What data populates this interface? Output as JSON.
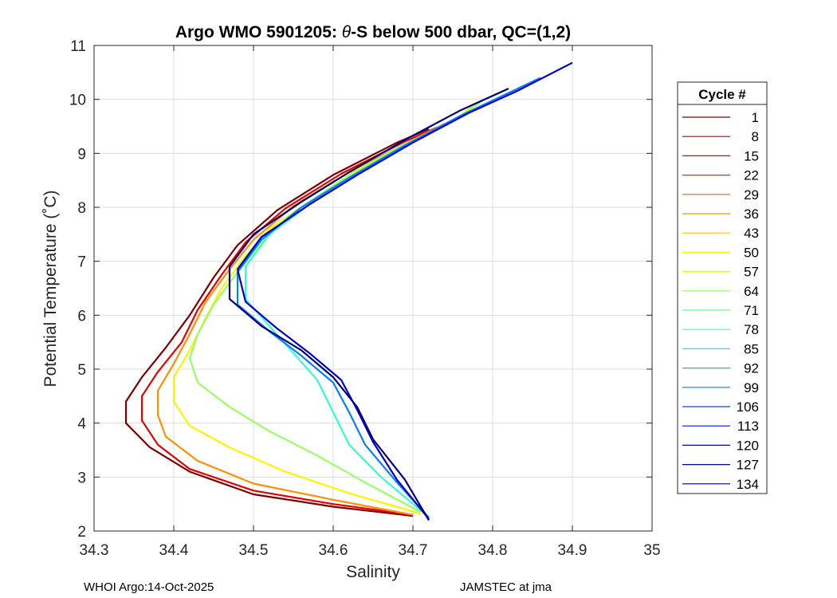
{
  "chart_data": {
    "type": "line",
    "title_prefix": "Argo WMO 5901205: ",
    "title_symbol": "θ",
    "title_suffix": "-S below 500 dbar,  QC=(1,2)",
    "xlabel": "Salinity",
    "ylabel": "Potential Temperature (˚C)",
    "xlim": [
      34.3,
      35
    ],
    "ylim": [
      2,
      11
    ],
    "xticks": [
      "34.3",
      "34.4",
      "34.5",
      "34.6",
      "34.7",
      "34.8",
      "34.9",
      "35"
    ],
    "yticks": [
      "2",
      "3",
      "4",
      "5",
      "6",
      "7",
      "8",
      "9",
      "10",
      "11"
    ],
    "grid": true,
    "legend_title": "Cycle #",
    "legend_position": "right-outside",
    "legend": [
      "1",
      "8",
      "15",
      "22",
      "29",
      "36",
      "43",
      "50",
      "57",
      "64",
      "71",
      "78",
      "85",
      "92",
      "99",
      "106",
      "113",
      "120",
      "127",
      "134"
    ],
    "legend_colors": [
      "#800000",
      "#b20000",
      "#e60000",
      "#ff2000",
      "#ff5a00",
      "#ff9000",
      "#ffc400",
      "#fff400",
      "#ccff33",
      "#99ff66",
      "#66ff99",
      "#33ffcc",
      "#00f0ff",
      "#00b8ff",
      "#0080ff",
      "#0048ff",
      "#0010ff",
      "#0000cc",
      "#000099",
      "#000080"
    ],
    "series_note": "",
    "representative_profiles": [
      {
        "cycle": "1",
        "color": "#800000",
        "points": [
          [
            34.7,
            2.28
          ],
          [
            34.6,
            2.45
          ],
          [
            34.5,
            2.68
          ],
          [
            34.42,
            3.1
          ],
          [
            34.37,
            3.55
          ],
          [
            34.34,
            4.0
          ],
          [
            34.34,
            4.4
          ],
          [
            34.36,
            4.85
          ],
          [
            34.39,
            5.4
          ],
          [
            34.42,
            6.0
          ],
          [
            34.45,
            6.7
          ],
          [
            34.48,
            7.3
          ],
          [
            34.53,
            7.95
          ],
          [
            34.6,
            8.6
          ],
          [
            34.68,
            9.2
          ],
          [
            34.72,
            9.45
          ]
        ]
      },
      {
        "cycle": "15",
        "color": "#e60000",
        "points": [
          [
            34.7,
            2.3
          ],
          [
            34.6,
            2.5
          ],
          [
            34.5,
            2.75
          ],
          [
            34.42,
            3.15
          ],
          [
            34.38,
            3.6
          ],
          [
            34.36,
            4.05
          ],
          [
            34.36,
            4.5
          ],
          [
            34.38,
            4.95
          ],
          [
            34.41,
            5.5
          ],
          [
            34.43,
            6.1
          ],
          [
            34.46,
            6.75
          ],
          [
            34.49,
            7.35
          ],
          [
            34.54,
            7.98
          ],
          [
            34.61,
            8.62
          ],
          [
            34.69,
            9.22
          ],
          [
            34.73,
            9.48
          ]
        ]
      },
      {
        "cycle": "36",
        "color": "#ff9000",
        "points": [
          [
            34.7,
            2.3
          ],
          [
            34.6,
            2.58
          ],
          [
            34.5,
            2.88
          ],
          [
            34.43,
            3.3
          ],
          [
            34.39,
            3.75
          ],
          [
            34.38,
            4.15
          ],
          [
            34.38,
            4.6
          ],
          [
            34.4,
            5.1
          ],
          [
            34.42,
            5.65
          ],
          [
            34.44,
            6.25
          ],
          [
            34.47,
            6.85
          ],
          [
            34.5,
            7.4
          ],
          [
            34.55,
            8.02
          ],
          [
            34.62,
            8.65
          ],
          [
            34.7,
            9.25
          ],
          [
            34.74,
            9.55
          ]
        ]
      },
      {
        "cycle": "50",
        "color": "#fff400",
        "points": [
          [
            34.71,
            2.32
          ],
          [
            34.62,
            2.7
          ],
          [
            34.54,
            3.1
          ],
          [
            34.47,
            3.55
          ],
          [
            34.42,
            3.95
          ],
          [
            34.4,
            4.4
          ],
          [
            34.4,
            4.85
          ],
          [
            34.42,
            5.35
          ],
          [
            34.44,
            5.95
          ],
          [
            34.46,
            6.5
          ],
          [
            34.49,
            7.1
          ],
          [
            34.52,
            7.6
          ],
          [
            34.57,
            8.1
          ],
          [
            34.63,
            8.7
          ],
          [
            34.71,
            9.3
          ],
          [
            34.76,
            9.7
          ],
          [
            34.78,
            9.95
          ]
        ]
      },
      {
        "cycle": "64",
        "color": "#99ff66",
        "points": [
          [
            34.71,
            2.35
          ],
          [
            34.64,
            2.9
          ],
          [
            34.58,
            3.4
          ],
          [
            34.52,
            3.85
          ],
          [
            34.47,
            4.3
          ],
          [
            34.43,
            4.75
          ],
          [
            34.42,
            5.2
          ],
          [
            34.43,
            5.65
          ],
          [
            34.45,
            6.2
          ],
          [
            34.48,
            6.8
          ],
          [
            34.51,
            7.35
          ],
          [
            34.55,
            7.9
          ],
          [
            34.61,
            8.5
          ],
          [
            34.68,
            9.1
          ],
          [
            34.75,
            9.6
          ],
          [
            34.79,
            10.0
          ]
        ]
      },
      {
        "cycle": "78",
        "color": "#33ffcc",
        "points": [
          [
            34.71,
            2.38
          ],
          [
            34.66,
            3.0
          ],
          [
            34.62,
            3.6
          ],
          [
            34.6,
            4.2
          ],
          [
            34.58,
            4.8
          ],
          [
            34.55,
            5.3
          ],
          [
            34.52,
            5.8
          ],
          [
            34.49,
            6.3
          ],
          [
            34.49,
            6.9
          ],
          [
            34.52,
            7.5
          ],
          [
            34.57,
            8.05
          ],
          [
            34.63,
            8.6
          ],
          [
            34.7,
            9.2
          ],
          [
            34.77,
            9.75
          ],
          [
            34.82,
            10.1
          ]
        ]
      },
      {
        "cycle": "99",
        "color": "#0080ff",
        "points": [
          [
            34.72,
            2.25
          ],
          [
            34.68,
            2.9
          ],
          [
            34.64,
            3.6
          ],
          [
            34.62,
            4.2
          ],
          [
            34.6,
            4.75
          ],
          [
            34.56,
            5.25
          ],
          [
            34.52,
            5.7
          ],
          [
            34.48,
            6.2
          ],
          [
            34.48,
            6.8
          ],
          [
            34.51,
            7.4
          ],
          [
            34.56,
            8.0
          ],
          [
            34.62,
            8.55
          ],
          [
            34.69,
            9.15
          ],
          [
            34.76,
            9.7
          ],
          [
            34.81,
            10.05
          ],
          [
            34.86,
            10.4
          ]
        ]
      },
      {
        "cycle": "120",
        "color": "#0000cc",
        "points": [
          [
            34.72,
            2.22
          ],
          [
            34.68,
            2.95
          ],
          [
            34.65,
            3.65
          ],
          [
            34.63,
            4.25
          ],
          [
            34.61,
            4.8
          ],
          [
            34.57,
            5.3
          ],
          [
            34.53,
            5.75
          ],
          [
            34.49,
            6.25
          ],
          [
            34.48,
            6.85
          ],
          [
            34.51,
            7.45
          ],
          [
            34.57,
            8.05
          ],
          [
            34.63,
            8.6
          ],
          [
            34.7,
            9.2
          ],
          [
            34.77,
            9.75
          ],
          [
            34.83,
            10.15
          ],
          [
            34.9,
            10.68
          ]
        ]
      },
      {
        "cycle": "134",
        "color": "#000080",
        "points": [
          [
            34.72,
            2.2
          ],
          [
            34.69,
            2.95
          ],
          [
            34.65,
            3.7
          ],
          [
            34.63,
            4.3
          ],
          [
            34.6,
            4.85
          ],
          [
            34.56,
            5.35
          ],
          [
            34.51,
            5.8
          ],
          [
            34.47,
            6.3
          ],
          [
            34.47,
            6.9
          ],
          [
            34.5,
            7.5
          ],
          [
            34.56,
            8.1
          ],
          [
            34.62,
            8.65
          ],
          [
            34.69,
            9.25
          ],
          [
            34.76,
            9.8
          ],
          [
            34.82,
            10.2
          ]
        ]
      }
    ]
  },
  "footer": {
    "left": "WHOI Argo:14-Oct-2025",
    "right": "JAMSTEC at jma"
  }
}
